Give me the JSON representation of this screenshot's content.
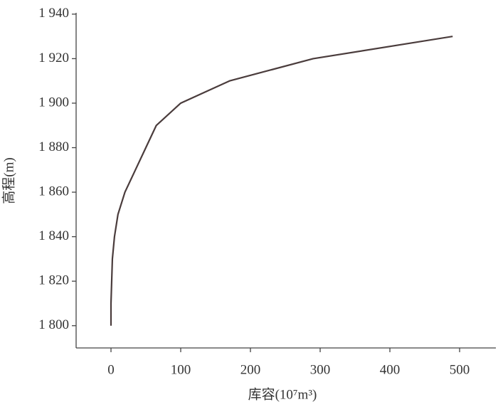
{
  "chart_data": {
    "type": "line",
    "xlabel": "库容(10⁷m³)",
    "ylabel": "高程(m)",
    "x": [
      0,
      0,
      1,
      2,
      5,
      10,
      20,
      35,
      50,
      65,
      100,
      170,
      290,
      490
    ],
    "series": [
      {
        "color": "#4a3c3c",
        "values": [
          1800,
          1810,
          1820,
          1830,
          1840,
          1850,
          1860,
          1870,
          1880,
          1890,
          1900,
          1910,
          1920,
          1930
        ]
      }
    ],
    "xlim": [
      -50,
      552
    ],
    "ylim": [
      1790,
      1940.6
    ],
    "xticks": [
      0,
      100,
      200,
      300,
      400,
      500
    ],
    "yticks": [
      {
        "value": 1800,
        "label": "1 800"
      },
      {
        "value": 1820,
        "label": "1 820"
      },
      {
        "value": 1840,
        "label": "1 840"
      },
      {
        "value": 1860,
        "label": "1 860"
      },
      {
        "value": 1880,
        "label": "1 880"
      },
      {
        "value": 1900,
        "label": "1 900"
      },
      {
        "value": 1920,
        "label": "1 920"
      },
      {
        "value": 1940,
        "label": "1 940"
      }
    ]
  }
}
